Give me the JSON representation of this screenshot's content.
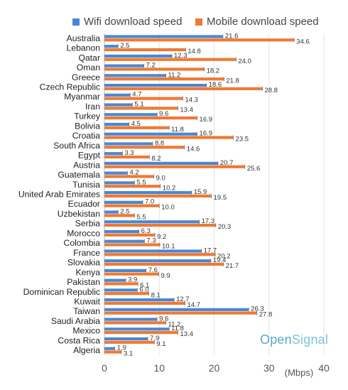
{
  "watermark": {
    "part1": "Open",
    "part2": "Signal"
  },
  "chart_data": {
    "type": "bar",
    "orientation": "horizontal",
    "title": "",
    "xlabel": "(Mbps)",
    "ylabel": "",
    "xlim": [
      0,
      40
    ],
    "xticks": [
      0,
      10,
      20,
      30,
      40
    ],
    "grid": true,
    "legend": "top",
    "colors": {
      "wifi": "#4a86d4",
      "mobile": "#ee7a33"
    },
    "categories": [
      "Australia",
      "Lebanon",
      "Qatar",
      "Oman",
      "Greece",
      "Czech Republic",
      "Myanmar",
      "Iran",
      "Turkey",
      "Bolivia",
      "Croatia",
      "South Africa",
      "Egypt",
      "Austria",
      "Guatemala",
      "Tunisia",
      "United Arab Emirates",
      "Ecuador",
      "Uzbekistan",
      "Serbia",
      "Morocco",
      "Colombia",
      "France",
      "Slovakia",
      "Kenya",
      "Pakistan",
      "Dominican Republic",
      "Kuwait",
      "Taiwan",
      "Saudi Arabia",
      "Mexico",
      "Costa Rica",
      "Algeria"
    ],
    "series": [
      {
        "name": "Wifi download speed",
        "values": [
          21.6,
          2.5,
          12.3,
          7.2,
          11.2,
          18.6,
          4.7,
          5.1,
          9.6,
          4.5,
          16.9,
          8.8,
          3.3,
          20.7,
          4.2,
          5.5,
          15.9,
          7.0,
          2.5,
          17.3,
          6.3,
          7.3,
          17.7,
          19.4,
          7.6,
          3.9,
          6.0,
          12.7,
          26.3,
          9.6,
          11.8,
          7.9,
          1.9
        ]
      },
      {
        "name": "Mobile download speed",
        "values": [
          34.6,
          14.8,
          24.0,
          18.2,
          21.8,
          28.8,
          14.3,
          13.4,
          16.9,
          11.8,
          23.5,
          14.6,
          8.2,
          25.6,
          9.0,
          10.2,
          19.5,
          10.0,
          5.5,
          20.3,
          9.2,
          10.1,
          20.2,
          21.7,
          9.9,
          6.1,
          8.1,
          14.7,
          27.8,
          11.2,
          13.4,
          9.1,
          3.1
        ]
      }
    ]
  }
}
